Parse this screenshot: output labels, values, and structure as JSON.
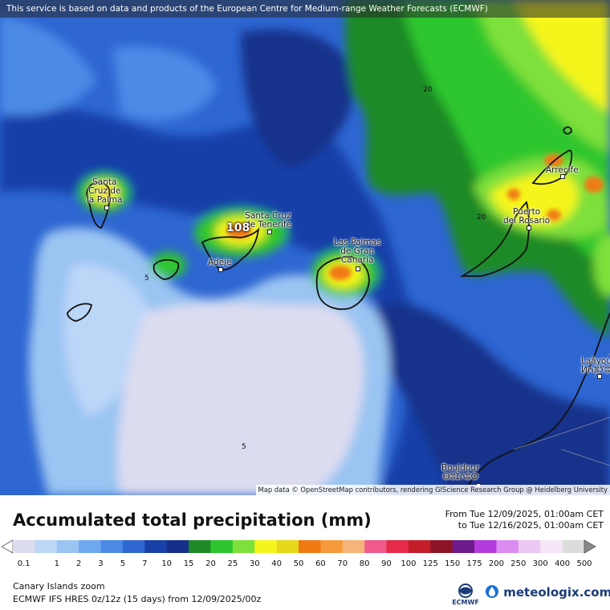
{
  "banner": "This service is based on data and products of the European Centre for Medium-range Weather Forecasts (ECMWF)",
  "attribution": "Map data © OpenStreetMap contributors, rendering GIScience Research Group @ Heidelberg University",
  "cities": {
    "santa_cruz_palma": [
      "Santa",
      "Cruz de",
      "la Palma"
    ],
    "santa_cruz_tenerife": [
      "Santa Cruz",
      "de Tenerife"
    ],
    "adeje": "Adeje",
    "las_palmas": [
      "Las Palmas",
      "de Gran",
      "Canaria"
    ],
    "arrecife": "Arrecife",
    "puerto_rosario": [
      "Puerto",
      "del Rosario"
    ],
    "laayoune": [
      "Laâyou",
      "ⵍⵄⴻⵢⵓⵏ"
    ],
    "boujdour": [
      "Boujdour",
      "ⴱⵓⵊⴷⵓⵔ"
    ]
  },
  "contour_labels": [
    "20",
    "20",
    "5",
    "5"
  ],
  "max_value": "108",
  "title": "Accumulated total precipitation (mm)",
  "from": "From Tue 12/09/2025, 01:00am CET",
  "to": "to Tue 12/16/2025, 01:00am CET",
  "legend": {
    "ticks": [
      "0.1",
      "1",
      "2",
      "3",
      "5",
      "7",
      "10",
      "15",
      "20",
      "25",
      "30",
      "40",
      "50",
      "60",
      "70",
      "80",
      "90",
      "100",
      "125",
      "150",
      "175",
      "200",
      "250",
      "300",
      "400",
      "500"
    ],
    "colors": [
      "#dcdcf0",
      "#bcd6f8",
      "#9ac4f2",
      "#6ea8ee",
      "#4b8ae6",
      "#2e66d2",
      "#1841a8",
      "#15308a",
      "#1f8a26",
      "#2ec62e",
      "#7ee03a",
      "#f5f51e",
      "#e6d81a",
      "#f07a14",
      "#f59a3a",
      "#f5b478",
      "#f05a8a",
      "#e62a4a",
      "#c41e28",
      "#8c1424",
      "#6e1c8c",
      "#b43cdc",
      "#dc8cf0",
      "#ecc8f4",
      "#f5e6f8",
      "#dcdcdc"
    ]
  },
  "footer": {
    "region": "Canary Islands zoom",
    "model": "ECMWF IFS HRES 0z/12z (15 days) from 12/09/2025/00z"
  },
  "logos": {
    "ecmwf": "ECMWF",
    "meteologix": "meteologix.com"
  }
}
